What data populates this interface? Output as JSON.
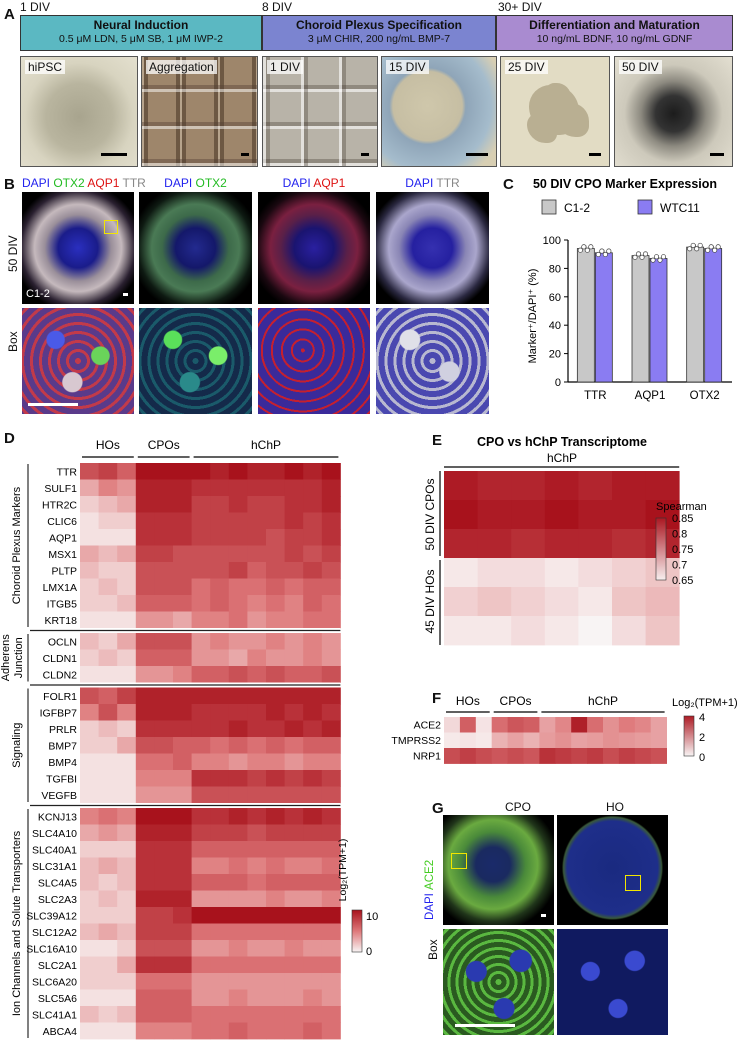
{
  "panelA": {
    "label": "A",
    "timeline": [
      "1 DIV",
      "8 DIV",
      "30+ DIV"
    ],
    "stages": [
      {
        "title": "Neural Induction",
        "detail": "0.5 μM LDN, 5 μM SB, 1 μM IWP-2",
        "color": "#5bb8c2"
      },
      {
        "title": "Choroid Plexus Specification",
        "detail": "3 μM CHIR, 200 ng/mL BMP-7",
        "color": "#7b84d0"
      },
      {
        "title": "Differentiation and Maturation",
        "detail": "10 ng/mL BDNF, 10 ng/mL GDNF",
        "color": "#a98bd0"
      }
    ],
    "photos": [
      "hiPSC",
      "Aggregation",
      "1 DIV",
      "15 DIV",
      "25 DIV",
      "50 DIV"
    ]
  },
  "panelB": {
    "label": "B",
    "channels": [
      [
        {
          "text": "DAPI",
          "color": "#2222ee"
        },
        {
          "text": "OTX2",
          "color": "#22bb22"
        },
        {
          "text": "AQP1",
          "color": "#dd1111"
        },
        {
          "text": "TTR",
          "color": "#888888"
        }
      ],
      [
        {
          "text": "DAPI",
          "color": "#2222ee"
        },
        {
          "text": "OTX2",
          "color": "#22bb22"
        }
      ],
      [
        {
          "text": "DAPI",
          "color": "#2222ee"
        },
        {
          "text": "AQP1",
          "color": "#dd1111"
        }
      ],
      [
        {
          "text": "DAPI",
          "color": "#2222ee"
        },
        {
          "text": "TTR",
          "color": "#888888"
        }
      ]
    ],
    "row_labels": [
      "50 DIV",
      "Box"
    ],
    "line_label": "C1-2"
  },
  "panelC": {
    "label": "C",
    "chart_data": {
      "type": "bar",
      "title": "50 DIV CPO Marker Expression",
      "categories": [
        "TTR",
        "AQP1",
        "OTX2"
      ],
      "series": [
        {
          "name": "C1-2",
          "values": [
            94,
            89,
            95
          ],
          "color": "#c8c8c8"
        },
        {
          "name": "WTC11",
          "values": [
            91,
            87,
            94
          ],
          "color": "#8a7cf2"
        }
      ],
      "ylabel": "Marker⁺/DAPI⁺ (%)",
      "ylim": [
        0,
        100
      ],
      "yticks": [
        0,
        20,
        40,
        60,
        80,
        100
      ]
    }
  },
  "panelD": {
    "label": "D",
    "group_headers": [
      "HOs",
      "CPOs",
      "hChP"
    ],
    "legend_label": "Log₂(TPM+1)",
    "legend_ticks": [
      "10",
      "0"
    ],
    "sections": [
      {
        "name": "Choroid Plexus Markers",
        "genes": [
          "TTR",
          "SULF1",
          "HTR2C",
          "CLIC6",
          "AQP1",
          "MSX1",
          "PLTP",
          "LMX1A",
          "ITGB5",
          "KRT18"
        ]
      },
      {
        "name": "Adherens Junction",
        "genes": [
          "OCLN",
          "CLDN1",
          "CLDN2"
        ]
      },
      {
        "name": "Signaling",
        "genes": [
          "FOLR1",
          "IGFBP7",
          "PRLR",
          "BMP7",
          "BMP4",
          "TGFBI",
          "VEGFB"
        ]
      },
      {
        "name": "Ion Channels and Solute Transporters",
        "genes": [
          "KCNJ13",
          "SLC4A10",
          "SLC40A1",
          "SLC31A1",
          "SLC4A5",
          "SLC2A3",
          "SLC39A12",
          "SLC12A2",
          "SLC16A10",
          "SLC2A1",
          "SLC6A20",
          "SLC5A6",
          "SLC41A1",
          "ABCA4"
        ]
      }
    ],
    "chart_data": {
      "type": "heatmap",
      "columns": [
        "HOs",
        "HOs",
        "HOs",
        "CPOs",
        "CPOs",
        "CPOs",
        "hChP",
        "hChP",
        "hChP",
        "hChP",
        "hChP",
        "hChP",
        "hChP",
        "hChP"
      ],
      "values": [
        [
          9,
          10,
          8,
          13,
          13,
          13,
          13,
          12,
          13,
          12,
          12,
          13,
          12,
          13
        ],
        [
          4,
          6,
          5,
          12,
          12,
          12,
          11,
          11,
          11,
          11,
          11,
          11,
          11,
          12
        ],
        [
          2,
          3,
          4,
          12,
          12,
          12,
          10,
          10,
          11,
          10,
          10,
          11,
          11,
          12
        ],
        [
          1,
          2,
          2,
          11,
          11,
          11,
          10,
          10,
          10,
          10,
          10,
          11,
          10,
          11
        ],
        [
          1,
          1,
          1,
          11,
          11,
          11,
          10,
          10,
          10,
          10,
          9,
          10,
          10,
          11
        ],
        [
          4,
          3,
          4,
          10,
          10,
          9,
          9,
          9,
          9,
          9,
          9,
          10,
          9,
          10
        ],
        [
          3,
          2,
          2,
          9,
          9,
          9,
          9,
          9,
          10,
          8,
          9,
          9,
          10,
          9
        ],
        [
          2,
          3,
          2,
          9,
          9,
          9,
          7,
          8,
          7,
          7,
          8,
          7,
          8,
          8
        ],
        [
          2,
          2,
          3,
          8,
          8,
          8,
          7,
          8,
          7,
          6,
          7,
          6,
          8,
          7
        ],
        [
          1,
          1,
          1,
          5,
          5,
          4,
          6,
          6,
          7,
          5,
          6,
          6,
          7,
          7
        ],
        [
          3,
          2,
          4,
          9,
          9,
          9,
          5,
          6,
          5,
          5,
          6,
          5,
          6,
          5
        ],
        [
          2,
          3,
          2,
          8,
          8,
          8,
          5,
          5,
          4,
          6,
          5,
          5,
          6,
          5
        ],
        [
          1,
          1,
          1,
          5,
          5,
          6,
          8,
          8,
          9,
          8,
          9,
          8,
          8,
          9
        ],
        [
          9,
          8,
          10,
          12,
          12,
          12,
          12,
          12,
          12,
          12,
          12,
          12,
          12,
          12
        ],
        [
          6,
          9,
          6,
          12,
          12,
          12,
          11,
          11,
          11,
          11,
          12,
          11,
          12,
          11
        ],
        [
          2,
          3,
          2,
          11,
          11,
          11,
          11,
          11,
          12,
          11,
          11,
          12,
          11,
          12
        ],
        [
          2,
          2,
          4,
          9,
          9,
          8,
          8,
          7,
          8,
          7,
          8,
          7,
          8,
          8
        ],
        [
          1,
          1,
          1,
          7,
          7,
          8,
          6,
          6,
          5,
          6,
          6,
          5,
          6,
          6
        ],
        [
          1,
          1,
          1,
          6,
          6,
          6,
          11,
          11,
          11,
          10,
          11,
          10,
          11,
          10
        ],
        [
          1,
          1,
          1,
          5,
          5,
          5,
          9,
          9,
          9,
          9,
          9,
          9,
          9,
          9
        ],
        [
          6,
          7,
          6,
          13,
          14,
          13,
          11,
          11,
          12,
          11,
          12,
          11,
          12,
          11
        ],
        [
          4,
          5,
          4,
          12,
          12,
          12,
          10,
          10,
          10,
          9,
          10,
          10,
          10,
          10
        ],
        [
          2,
          2,
          2,
          11,
          11,
          11,
          8,
          8,
          8,
          8,
          8,
          8,
          8,
          8
        ],
        [
          3,
          4,
          3,
          11,
          11,
          11,
          6,
          6,
          7,
          6,
          7,
          6,
          6,
          7
        ],
        [
          3,
          2,
          3,
          11,
          11,
          11,
          8,
          8,
          8,
          7,
          8,
          8,
          8,
          8
        ],
        [
          2,
          3,
          2,
          12,
          12,
          12,
          5,
          5,
          5,
          5,
          6,
          5,
          5,
          6
        ],
        [
          2,
          2,
          2,
          10,
          10,
          11,
          13,
          13,
          13,
          13,
          13,
          13,
          13,
          13
        ],
        [
          3,
          4,
          3,
          10,
          10,
          10,
          7,
          7,
          7,
          7,
          7,
          7,
          7,
          7
        ],
        [
          1,
          1,
          2,
          9,
          9,
          9,
          5,
          5,
          6,
          5,
          5,
          6,
          5,
          5
        ],
        [
          2,
          2,
          4,
          11,
          11,
          11,
          7,
          7,
          7,
          7,
          7,
          7,
          7,
          7
        ],
        [
          2,
          2,
          2,
          7,
          7,
          7,
          5,
          5,
          5,
          5,
          5,
          5,
          5,
          5
        ],
        [
          1,
          1,
          1,
          8,
          8,
          8,
          5,
          5,
          6,
          5,
          5,
          5,
          6,
          5
        ],
        [
          3,
          2,
          3,
          8,
          8,
          8,
          7,
          7,
          7,
          7,
          7,
          7,
          7,
          7
        ],
        [
          1,
          1,
          1,
          6,
          6,
          6,
          7,
          7,
          8,
          7,
          7,
          7,
          8,
          7
        ]
      ],
      "range": [
        0,
        13
      ]
    }
  },
  "panelE": {
    "label": "E",
    "chart_data": {
      "type": "heatmap",
      "title": "CPO vs hChP Transcriptome",
      "column_group": "hChP",
      "row_groups": [
        "50 DIV CPOs",
        "45 DIV HOs"
      ],
      "legend_label": "Spearman",
      "legend_ticks": [
        "0.85",
        "0.8",
        "0.75",
        "0.7",
        "0.65"
      ],
      "range": [
        0.65,
        0.87
      ],
      "values": [
        [
          0.85,
          0.84,
          0.84,
          0.85,
          0.84,
          0.85,
          0.85
        ],
        [
          0.86,
          0.85,
          0.85,
          0.86,
          0.85,
          0.85,
          0.86
        ],
        [
          0.84,
          0.84,
          0.83,
          0.84,
          0.84,
          0.83,
          0.84
        ],
        [
          0.66,
          0.67,
          0.67,
          0.66,
          0.67,
          0.68,
          0.69
        ],
        [
          0.68,
          0.69,
          0.68,
          0.67,
          0.66,
          0.69,
          0.7
        ],
        [
          0.66,
          0.66,
          0.67,
          0.66,
          0.65,
          0.67,
          0.69
        ]
      ]
    }
  },
  "panelF": {
    "label": "F",
    "group_headers": [
      "HOs",
      "CPOs",
      "hChP"
    ],
    "legend_label": "Log₂(TPM+1)",
    "legend_ticks": [
      "4",
      "2",
      "0"
    ],
    "chart_data": {
      "type": "heatmap",
      "rows": [
        "ACE2",
        "TMPRSS2",
        "NRP1"
      ],
      "range": [
        0,
        4.5
      ],
      "values": [
        [
          0.5,
          2.8,
          0.3,
          2.5,
          3.0,
          2.8,
          1.5,
          2.0,
          4.2,
          2.5,
          1.8,
          2.2,
          2.0,
          1.5
        ],
        [
          0.2,
          0.3,
          0.2,
          1.2,
          1.5,
          1.2,
          1.6,
          1.8,
          1.5,
          1.6,
          1.8,
          1.7,
          1.6,
          1.5
        ],
        [
          3.2,
          3.5,
          3.2,
          3.0,
          3.2,
          3.0,
          3.8,
          3.6,
          3.4,
          3.6,
          3.2,
          3.5,
          3.3,
          3.1
        ]
      ]
    }
  },
  "panelG": {
    "label": "G",
    "columns": [
      "CPO",
      "HO"
    ],
    "channels": [
      {
        "text": "DAPI",
        "color": "#2222ee"
      },
      {
        "text": "ACE2",
        "color": "#44cc22"
      }
    ],
    "row_label": "Box"
  }
}
